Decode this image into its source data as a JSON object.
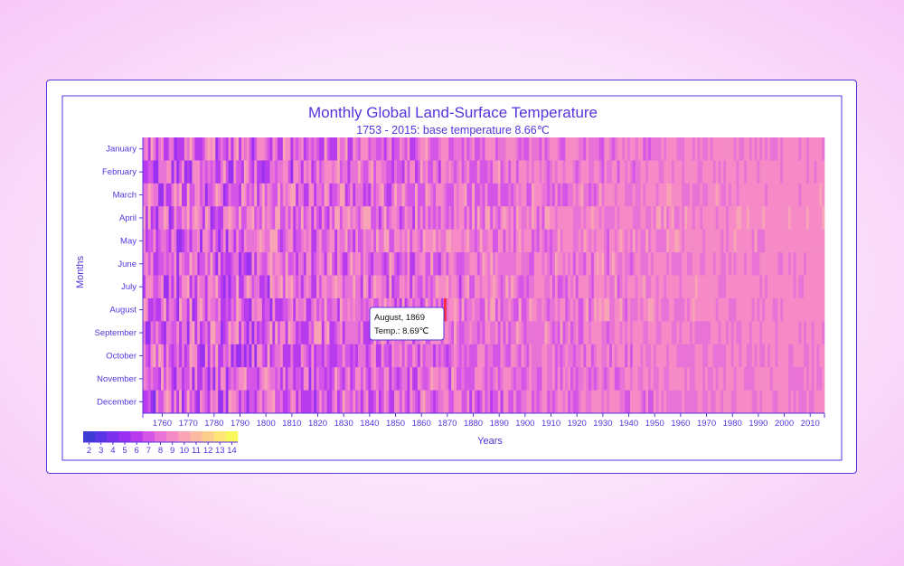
{
  "chart_data": {
    "type": "heatmap",
    "title": "Monthly Global Land-Surface Temperature",
    "subtitle": "1753 - 2015: base temperature 8.66℃",
    "xlabel": "Years",
    "ylabel": "Months",
    "base_temperature": 8.66,
    "x_range": [
      1753,
      2015
    ],
    "x_ticks": [
      1760,
      1770,
      1780,
      1790,
      1800,
      1810,
      1820,
      1830,
      1840,
      1850,
      1860,
      1870,
      1880,
      1890,
      1900,
      1910,
      1920,
      1930,
      1940,
      1950,
      1960,
      1970,
      1980,
      1990,
      2000,
      2010
    ],
    "months": [
      "January",
      "February",
      "March",
      "April",
      "May",
      "June",
      "July",
      "August",
      "September",
      "October",
      "November",
      "December"
    ],
    "legend": {
      "ticks": [
        2,
        3,
        4,
        5,
        6,
        7,
        8,
        9,
        10,
        11,
        12,
        13,
        14
      ],
      "colors": [
        "#3d3dd6",
        "#5a35e6",
        "#7a32ef",
        "#9a30f2",
        "#b83bee",
        "#d455e6",
        "#e872d6",
        "#f58ac6",
        "#f9a3b6",
        "#fbbaa2",
        "#fcd08c",
        "#fde676",
        "#f8f85a"
      ],
      "placement": "bottom-left"
    },
    "highlight": {
      "month": "August",
      "year": 1869,
      "temp": 8.69
    },
    "tooltip": {
      "line1": "August, 1869",
      "line2": "Temp.: 8.69℃"
    }
  }
}
